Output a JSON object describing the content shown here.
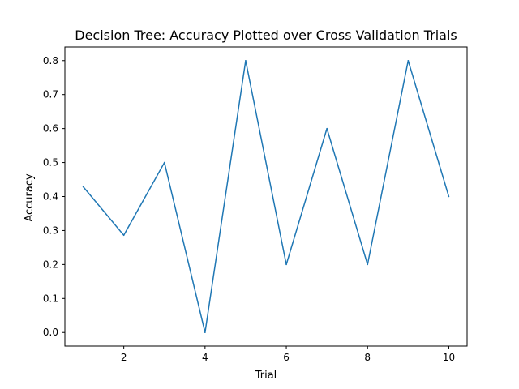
{
  "chart_data": {
    "type": "line",
    "title": "Decision Tree: Accuracy Plotted over Cross Validation Trials",
    "xlabel": "Trial",
    "ylabel": "Accuracy",
    "xlim": [
      0.55,
      10.45
    ],
    "ylim": [
      -0.04,
      0.84
    ],
    "xticks": [
      2,
      4,
      6,
      8,
      10
    ],
    "xtick_labels": [
      "2",
      "4",
      "6",
      "8",
      "10"
    ],
    "yticks": [
      0.0,
      0.1,
      0.2,
      0.3,
      0.4,
      0.5,
      0.6,
      0.7,
      0.8
    ],
    "ytick_labels": [
      "0.0",
      "0.1",
      "0.2",
      "0.3",
      "0.4",
      "0.5",
      "0.6",
      "0.7",
      "0.8"
    ],
    "grid": false,
    "series": [
      {
        "color": "#1f77b4",
        "x": [
          1,
          2,
          3,
          4,
          5,
          6,
          7,
          8,
          9,
          10
        ],
        "y": [
          0.429,
          0.286,
          0.5,
          0.0,
          0.8,
          0.2,
          0.6,
          0.2,
          0.8,
          0.4
        ]
      }
    ]
  }
}
